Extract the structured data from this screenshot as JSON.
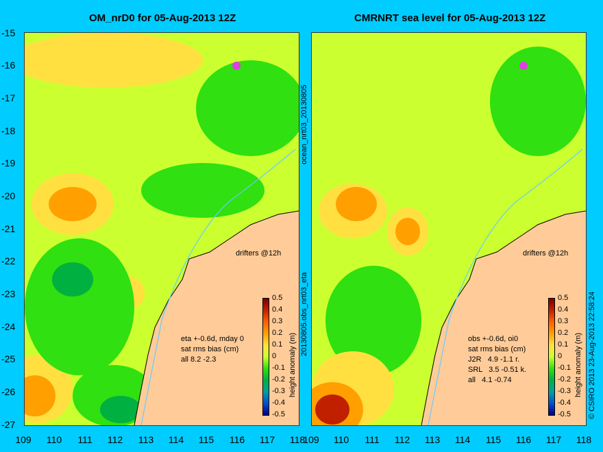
{
  "left_panel": {
    "title": "OM_nrD0 for 05-Aug-2013 12Z",
    "drifters_label": "drifters @12h",
    "side_label": "ocean_nrt03_20130805",
    "annotation": "eta +-0.6d, mday 0\nsat rms bias (cm)\nall 8.2 -2.3"
  },
  "right_panel": {
    "title": "CMRNRT sea level  for 05-Aug-2013 12Z",
    "drifters_label": "drifters @12h",
    "side_label": "20130805.obs_nrt03_eta",
    "annotation": "obs +-0.6d, oi0\nsat rms bias (cm)\nJ2R   4.9 -1.1 r.\nSRL   3.5 -0.51 k.\nall   4.1 -0.74"
  },
  "credit": "© CSIRO 2013   23-Aug-2013 22:58:24",
  "axes": {
    "lat_ticks": [
      "-15",
      "-16",
      "-17",
      "-18",
      "-19",
      "-20",
      "-21",
      "-22",
      "-23",
      "-24",
      "-25",
      "-26",
      "-27"
    ],
    "lon_ticks": [
      "109",
      "110",
      "111",
      "112",
      "113",
      "114",
      "115",
      "116",
      "117",
      "118"
    ]
  },
  "colorbar": {
    "label": "height anomaly (m)",
    "ticks": [
      "0.5",
      "0.4",
      "0.3",
      "0.2",
      "0.1",
      "0",
      "-0.1",
      "-0.2",
      "-0.3",
      "-0.4",
      "-0.5"
    ],
    "colors": [
      "#7a0000",
      "#c02000",
      "#ff6000",
      "#ffa000",
      "#ffe040",
      "#ccff30",
      "#30e010",
      "#00b040",
      "#00a0a0",
      "#0050d0",
      "#000080"
    ]
  },
  "colors": {
    "background": "#00ccff",
    "land": "#ffcc99",
    "drifter": "#e040e0"
  }
}
